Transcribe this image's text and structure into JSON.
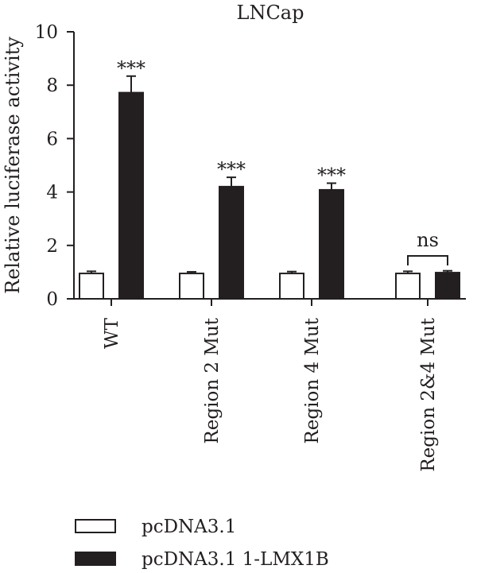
{
  "chart_data": {
    "type": "bar",
    "title": "LNCap",
    "xlabel": "",
    "ylabel": "Relative luciferase activity",
    "ylim": [
      0,
      10
    ],
    "yticks": [
      0,
      2,
      4,
      6,
      8,
      10
    ],
    "grid": false,
    "legend_position": "bottom-left",
    "categories": [
      "WT",
      "Region 2 Mut",
      "Region 4 Mut",
      "Region 2&4 Mut"
    ],
    "series": [
      {
        "name": "pcDNA3.1",
        "fill": "#ffffff",
        "values": [
          0.95,
          0.95,
          0.95,
          0.95
        ],
        "errors": [
          0.08,
          0.06,
          0.07,
          0.08
        ]
      },
      {
        "name": "pcDNA3.1 1-LMX1B",
        "fill": "#231f20",
        "values": [
          7.72,
          4.2,
          4.08,
          0.98
        ],
        "errors": [
          0.62,
          0.35,
          0.25,
          0.07
        ]
      }
    ],
    "annotations": [
      {
        "category": "WT",
        "label": "***"
      },
      {
        "category": "Region 2 Mut",
        "label": "***"
      },
      {
        "category": "Region 4 Mut",
        "label": "***"
      },
      {
        "category": "Region 2&4 Mut",
        "label": "ns",
        "bracket": true
      }
    ]
  }
}
